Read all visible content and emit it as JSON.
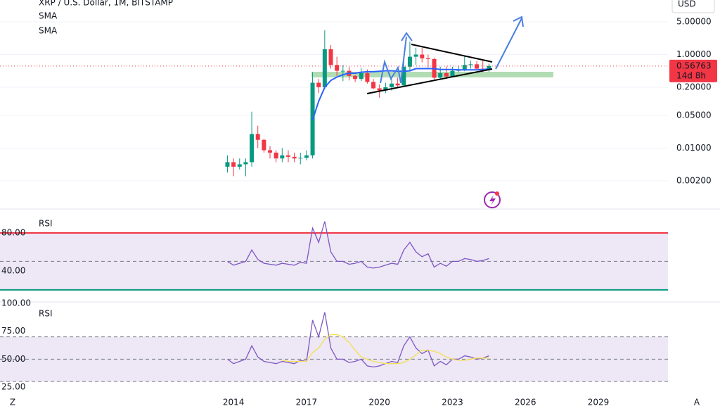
{
  "chart_data": [
    {
      "type": "candlestick",
      "title": "XRP / U.S. Dollar, 1M, BITSTAMP",
      "indicators": [
        "SMA",
        "SMA"
      ],
      "currency": "USD",
      "last_price": 0.56763,
      "countdown": "14d 8h",
      "log_scale": true,
      "grid": true,
      "up_color": "#089981",
      "down_color": "#f23645",
      "price_line_color": "#f23645",
      "xlim": [
        2004.4,
        2031.86
      ],
      "ylim": [
        0.000515,
        14.7
      ],
      "yticks": [
        {
          "value": 5,
          "label": "5.00000"
        },
        {
          "value": 1,
          "label": "1.00000"
        },
        {
          "value": 0.2,
          "label": "0.20000"
        },
        {
          "value": 0.05,
          "label": "0.05000"
        },
        {
          "value": 0.01,
          "label": "0.01000"
        },
        {
          "value": 0.002,
          "label": "0.00200"
        }
      ],
      "x": [
        2013.75,
        2014,
        2014.25,
        2014.5,
        2014.75,
        2015,
        2015.25,
        2015.5,
        2015.75,
        2016,
        2016.25,
        2016.5,
        2016.75,
        2017,
        2017.25,
        2017.5,
        2017.75,
        2018,
        2018.25,
        2018.5,
        2018.75,
        2019,
        2019.25,
        2019.5,
        2019.75,
        2020,
        2020.25,
        2020.5,
        2020.75,
        2021,
        2021.25,
        2021.5,
        2021.75,
        2022,
        2022.25,
        2022.5,
        2022.75,
        2023,
        2023.25,
        2023.5,
        2023.75,
        2024,
        2024.25,
        2024.5
      ],
      "open": [
        0.004,
        0.005,
        0.004,
        0.0045,
        0.005,
        0.02,
        0.015,
        0.009,
        0.008,
        0.006,
        0.007,
        0.0065,
        0.006,
        0.0062,
        0.007,
        0.25,
        0.2,
        1.3,
        0.6,
        0.45,
        0.45,
        0.35,
        0.3,
        0.4,
        0.26,
        0.19,
        0.17,
        0.2,
        0.24,
        0.22,
        0.55,
        0.9,
        1.0,
        0.83,
        0.8,
        0.32,
        0.4,
        0.34,
        0.45,
        0.48,
        0.6,
        0.62,
        0.5,
        0.47
      ],
      "high": [
        0.007,
        0.006,
        0.006,
        0.006,
        0.06,
        0.03,
        0.016,
        0.011,
        0.009,
        0.01,
        0.009,
        0.008,
        0.008,
        0.009,
        0.42,
        0.3,
        3.3,
        1.6,
        0.9,
        0.6,
        0.55,
        0.37,
        0.52,
        0.48,
        0.3,
        0.23,
        0.25,
        0.3,
        0.32,
        0.78,
        1.9,
        1.4,
        1.4,
        1.0,
        0.85,
        0.55,
        0.56,
        0.55,
        0.58,
        0.94,
        0.74,
        0.72,
        0.74,
        0.64
      ],
      "low": [
        0.003,
        0.0025,
        0.0035,
        0.0025,
        0.004,
        0.01,
        0.008,
        0.006,
        0.005,
        0.005,
        0.005,
        0.005,
        0.0045,
        0.0055,
        0.006,
        0.15,
        0.18,
        0.5,
        0.35,
        0.27,
        0.28,
        0.26,
        0.27,
        0.24,
        0.18,
        0.12,
        0.15,
        0.17,
        0.19,
        0.21,
        0.45,
        0.6,
        0.68,
        0.53,
        0.29,
        0.29,
        0.31,
        0.33,
        0.42,
        0.44,
        0.5,
        0.46,
        0.42,
        0.43
      ],
      "close": [
        0.005,
        0.004,
        0.0045,
        0.005,
        0.02,
        0.015,
        0.009,
        0.008,
        0.006,
        0.007,
        0.0065,
        0.006,
        0.0062,
        0.007,
        0.25,
        0.2,
        1.3,
        0.6,
        0.45,
        0.45,
        0.35,
        0.3,
        0.4,
        0.26,
        0.19,
        0.17,
        0.2,
        0.24,
        0.22,
        0.55,
        0.9,
        1.0,
        0.83,
        0.8,
        0.32,
        0.4,
        0.34,
        0.45,
        0.48,
        0.6,
        0.62,
        0.5,
        0.47,
        0.57
      ],
      "series": [
        {
          "name": "SMA",
          "color": "#2962ff",
          "values": [
            null,
            null,
            null,
            null,
            null,
            null,
            null,
            null,
            null,
            null,
            null,
            null,
            null,
            null,
            0.04,
            0.1,
            0.2,
            0.28,
            0.33,
            0.37,
            0.4,
            0.4,
            0.42,
            0.43,
            0.43,
            0.44,
            0.45,
            0.45,
            0.44,
            0.44,
            0.45,
            0.5,
            0.5,
            0.5,
            0.5,
            0.48,
            0.48,
            0.48,
            0.47,
            0.47,
            0.47,
            0.47,
            0.48,
            0.49
          ]
        }
      ]
    },
    {
      "type": "line",
      "title": "RSI",
      "band_color": "#ede7f6",
      "xlim": [
        2004.4,
        2031.86
      ],
      "ylim": [
        8.1,
        104.4
      ],
      "band": [
        20,
        80
      ],
      "band_lines": [
        {
          "value": 80,
          "color": "#f23645",
          "dashed": false
        },
        {
          "value": 50,
          "color": "#787b86",
          "dashed": true
        },
        {
          "value": 20,
          "color": "#089981",
          "dashed": false
        }
      ],
      "yticks": [
        {
          "value": 80,
          "label": "80.00"
        },
        {
          "value": 40,
          "label": "40.00"
        }
      ],
      "x": [
        2013.75,
        2014,
        2014.25,
        2014.5,
        2014.75,
        2015,
        2015.25,
        2015.5,
        2015.75,
        2016,
        2016.25,
        2016.5,
        2016.75,
        2017,
        2017.25,
        2017.5,
        2017.75,
        2018,
        2018.25,
        2018.5,
        2018.75,
        2019,
        2019.25,
        2019.5,
        2019.75,
        2020,
        2020.25,
        2020.5,
        2020.75,
        2021,
        2021.25,
        2021.5,
        2021.75,
        2022,
        2022.25,
        2022.5,
        2022.75,
        2023,
        2023.25,
        2023.5,
        2023.75,
        2024,
        2024.25,
        2024.5
      ],
      "series": [
        {
          "name": "RSI",
          "color": "#7e57c2",
          "values": [
            50,
            46,
            48,
            50,
            62,
            52,
            48,
            47,
            46,
            48,
            47,
            46,
            49,
            48,
            85,
            70,
            92,
            60,
            50,
            50,
            47,
            48,
            50,
            44,
            43,
            44,
            46,
            48,
            47,
            62,
            70,
            60,
            55,
            58,
            44,
            48,
            45,
            50,
            50,
            53,
            52,
            50,
            51,
            53
          ]
        }
      ]
    },
    {
      "type": "line",
      "title": "RSI",
      "band_color": "#ede7f6",
      "xlim": [
        2004.4,
        2031.86
      ],
      "ylim": [
        18.75,
        100.6
      ],
      "band": [
        30,
        70
      ],
      "band_lines": [
        {
          "value": 70,
          "color": "#787b86",
          "dashed": true
        },
        {
          "value": 50,
          "color": "#787b86",
          "dashed": true
        },
        {
          "value": 30,
          "color": "#787b86",
          "dashed": true
        }
      ],
      "yticks": [
        {
          "value": 100,
          "label": "100.00"
        },
        {
          "value": 75,
          "label": "75.00"
        },
        {
          "value": 50,
          "label": "50.00"
        },
        {
          "value": 25,
          "label": "25.00"
        }
      ],
      "xticks": [
        2014,
        2017,
        2020,
        2023,
        2026,
        2029
      ],
      "x": [
        2013.75,
        2014,
        2014.25,
        2014.5,
        2014.75,
        2015,
        2015.25,
        2015.5,
        2015.75,
        2016,
        2016.25,
        2016.5,
        2016.75,
        2017,
        2017.25,
        2017.5,
        2017.75,
        2018,
        2018.25,
        2018.5,
        2018.75,
        2019,
        2019.25,
        2019.5,
        2019.75,
        2020,
        2020.25,
        2020.5,
        2020.75,
        2021,
        2021.25,
        2021.5,
        2021.75,
        2022,
        2022.25,
        2022.5,
        2022.75,
        2023,
        2023.25,
        2023.5,
        2023.75,
        2024,
        2024.25,
        2024.5
      ],
      "series": [
        {
          "name": "RSI",
          "color": "#7e57c2",
          "values": [
            50,
            46,
            48,
            50,
            62,
            52,
            48,
            47,
            46,
            48,
            47,
            46,
            49,
            48,
            85,
            70,
            92,
            60,
            50,
            50,
            47,
            48,
            50,
            44,
            43,
            44,
            46,
            48,
            47,
            62,
            70,
            60,
            55,
            58,
            44,
            48,
            45,
            50,
            50,
            53,
            52,
            50,
            51,
            53
          ]
        },
        {
          "name": "SMA",
          "color": "#f5e050",
          "values": [
            null,
            null,
            null,
            null,
            null,
            null,
            null,
            null,
            null,
            49,
            48,
            48,
            48,
            48,
            56,
            60,
            68,
            72,
            72,
            70,
            65,
            58,
            52,
            50,
            48,
            47,
            46,
            46,
            46,
            47,
            50,
            54,
            58,
            58,
            57,
            55,
            52,
            50,
            49,
            49,
            50,
            51,
            51,
            51
          ]
        }
      ]
    }
  ],
  "toolbar": {
    "left": "Z",
    "right": "A"
  }
}
